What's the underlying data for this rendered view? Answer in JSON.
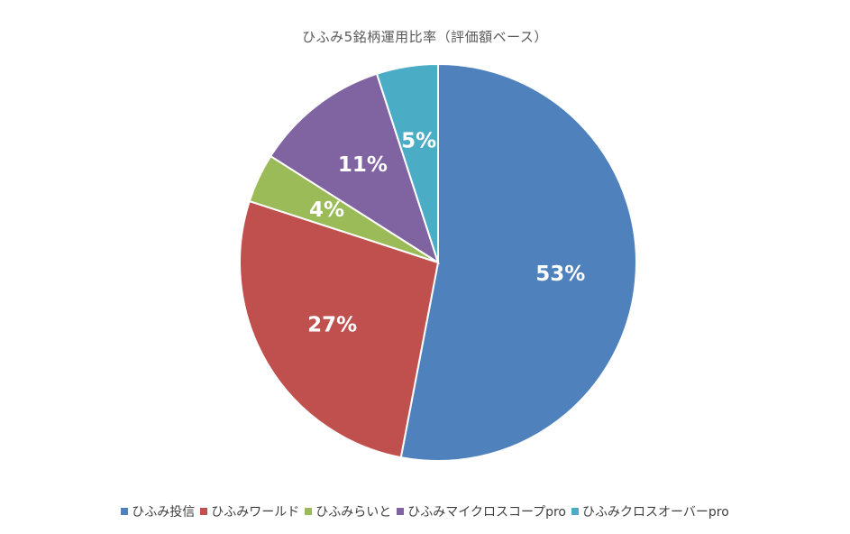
{
  "chart_data": {
    "type": "pie",
    "title": "ひふみ5銘柄運用比率（評価額ベース）",
    "categories": [
      "ひふみ投信",
      "ひふみワールド",
      "ひふみらいと",
      "ひふみマイクロスコープpro",
      "ひふみクロスオーバーpro"
    ],
    "values": [
      53,
      27,
      4,
      11,
      5
    ],
    "labels": [
      "53%",
      "27%",
      "4%",
      "11%",
      "5%"
    ],
    "colors": [
      "#4f81bd",
      "#c0504d",
      "#9bbb59",
      "#8064a2",
      "#4bacc6"
    ],
    "start_angle_deg": 0,
    "direction": "clockwise",
    "legend_position": "bottom"
  }
}
